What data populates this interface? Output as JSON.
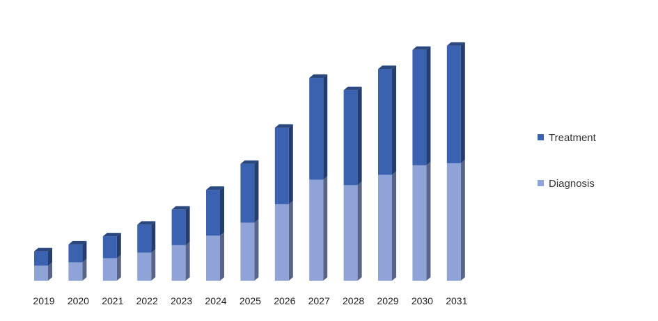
{
  "chart_data": {
    "type": "bar",
    "stacked": true,
    "three_d": true,
    "categories": [
      "2019",
      "2020",
      "2021",
      "2022",
      "2023",
      "2024",
      "2025",
      "2026",
      "2027",
      "2028",
      "2029",
      "2030",
      "2031"
    ],
    "series": [
      {
        "name": "Diagnosis",
        "color": "#8fa3d8",
        "values": [
          22,
          27,
          33,
          41,
          52,
          66,
          85,
          112,
          148,
          140,
          155,
          169,
          172
        ]
      },
      {
        "name": "Treatment",
        "color": "#3a62b0",
        "values": [
          21,
          26,
          32,
          41,
          52,
          67,
          86,
          112,
          149,
          139,
          155,
          169,
          172
        ]
      }
    ],
    "legend": {
      "position": "right",
      "order": [
        "Treatment",
        "Diagnosis"
      ]
    },
    "grid": false,
    "ylim": [
      0,
      350
    ],
    "yaxis_visible": false
  }
}
